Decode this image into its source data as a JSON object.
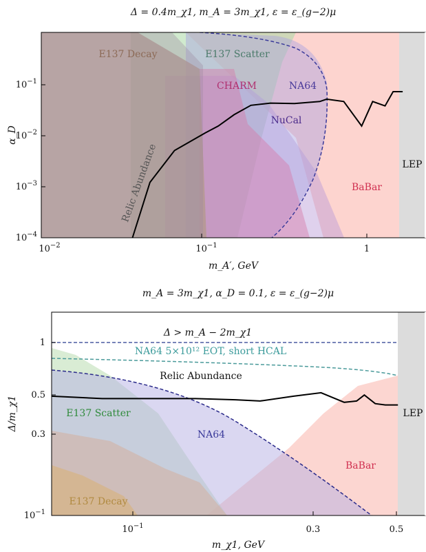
{
  "chart_data": [
    {
      "type": "area",
      "title": "Δ = 0.4m_χ1, m_A = 3m_χ1, ε = ε_(g−2)μ",
      "xlabel": "m_A′, GeV",
      "ylabel": "α_D",
      "xscale": "log",
      "yscale": "log",
      "xlim": [
        0.01,
        2.2
      ],
      "ylim": [
        0.0001,
        1
      ],
      "x_ticks": [
        "10^-2",
        "10^-1",
        "1"
      ],
      "y_ticks": [
        "10^-4",
        "10^-3",
        "10^-2",
        "10^-1"
      ],
      "regions": [
        {
          "name": "E137 Decay",
          "color": "#b08a75"
        },
        {
          "name": "E137 Scatter",
          "color": "#8fc98f"
        },
        {
          "name": "CHARM",
          "color": "#c04a8c"
        },
        {
          "name": "NA64",
          "color": "#7a74c8"
        },
        {
          "name": "NuCal",
          "color": "#6a3aa0"
        },
        {
          "name": "BaBar",
          "color": "#f7a39a"
        },
        {
          "name": "LEP",
          "color": "#9a9a9a"
        }
      ],
      "region_labels": {
        "e137_decay": "E137 Decay",
        "e137_scatter": "E137 Scatter",
        "charm": "CHARM",
        "na64": "NA64",
        "nucal": "NuCal",
        "babar": "BaBar",
        "lep": "LEP",
        "relic": "Relic Abundance"
      },
      "series": [
        {
          "name": "Relic Abundance",
          "x": [
            0.036,
            0.046,
            0.065,
            0.1,
            0.12,
            0.15,
            0.19,
            0.25,
            0.35,
            0.5,
            0.55,
            0.7,
            0.9,
            1.05,
            1.25,
            1.4,
            1.6
          ],
          "y": [
            0.0001,
            0.0012,
            0.005,
            0.011,
            0.015,
            0.025,
            0.038,
            0.042,
            0.041,
            0.045,
            0.05,
            0.045,
            0.015,
            0.045,
            0.037,
            0.07,
            0.07
          ]
        },
        {
          "name": "NA64",
          "x": [
            0.26,
            0.4,
            0.47,
            0.52,
            0.55,
            0.53,
            0.48,
            0.4
          ],
          "y": [
            0.0001,
            0.0008,
            0.0035,
            0.012,
            0.05,
            0.15,
            0.35,
            0.6
          ]
        }
      ]
    },
    {
      "type": "area",
      "title": "m_A = 3m_χ1, α_D = 0.1, ε = ε_(g−2)μ",
      "xlabel": "m_χ1, GeV",
      "ylabel": "Δ/m_χ1",
      "xscale": "log",
      "yscale": "log",
      "xlim": [
        0.05,
        0.6
      ],
      "ylim": [
        0.1,
        2
      ],
      "x_ticks": [
        "10^-1",
        "0.3",
        "0.5"
      ],
      "y_ticks": [
        "0.1",
        "0.3",
        "0.5",
        "1"
      ],
      "regions": [
        {
          "name": "E137 Scatter",
          "color": "#8fc98f"
        },
        {
          "name": "E137 Decay",
          "color": "#c9a06a"
        },
        {
          "name": "NA64",
          "color": "#7a74c8"
        },
        {
          "name": "BaBar",
          "color": "#f7a39a"
        },
        {
          "name": "LEP",
          "color": "#9a9a9a"
        }
      ],
      "region_labels": {
        "kinematic": "Δ > m_A − 2m_χ1",
        "na64_proj": "NA64 5×10¹² EOT, short HCAL",
        "relic": "Relic Abundance",
        "e137_scatter": "E137 Scatter",
        "na64": "NA64",
        "babar": "BaBar",
        "e137_decay": "E137 Decay",
        "lep": "LEP"
      },
      "series": [
        {
          "name": "Δ > m_A − 2m_χ1",
          "x": [
            0.05,
            0.5
          ],
          "y": [
            1.0,
            1.0
          ]
        },
        {
          "name": "NA64 5×10¹² EOT, short HCAL",
          "x": [
            0.05,
            0.1,
            0.2,
            0.3,
            0.4,
            0.5
          ],
          "y": [
            0.8,
            0.79,
            0.77,
            0.74,
            0.7,
            0.65
          ]
        },
        {
          "name": "Relic Abundance",
          "x": [
            0.05,
            0.07,
            0.1,
            0.13,
            0.17,
            0.2,
            0.25,
            0.3,
            0.35,
            0.38,
            0.4,
            0.43,
            0.46,
            0.5
          ],
          "y": [
            0.58,
            0.56,
            0.56,
            0.56,
            0.55,
            0.54,
            0.58,
            0.61,
            0.53,
            0.54,
            0.59,
            0.52,
            0.51,
            0.51
          ]
        },
        {
          "name": "NA64",
          "x": [
            0.05,
            0.1,
            0.15,
            0.2,
            0.25,
            0.3,
            0.4,
            0.45
          ],
          "y": [
            0.7,
            0.6,
            0.49,
            0.4,
            0.3,
            0.22,
            0.13,
            0.1
          ]
        }
      ]
    }
  ]
}
